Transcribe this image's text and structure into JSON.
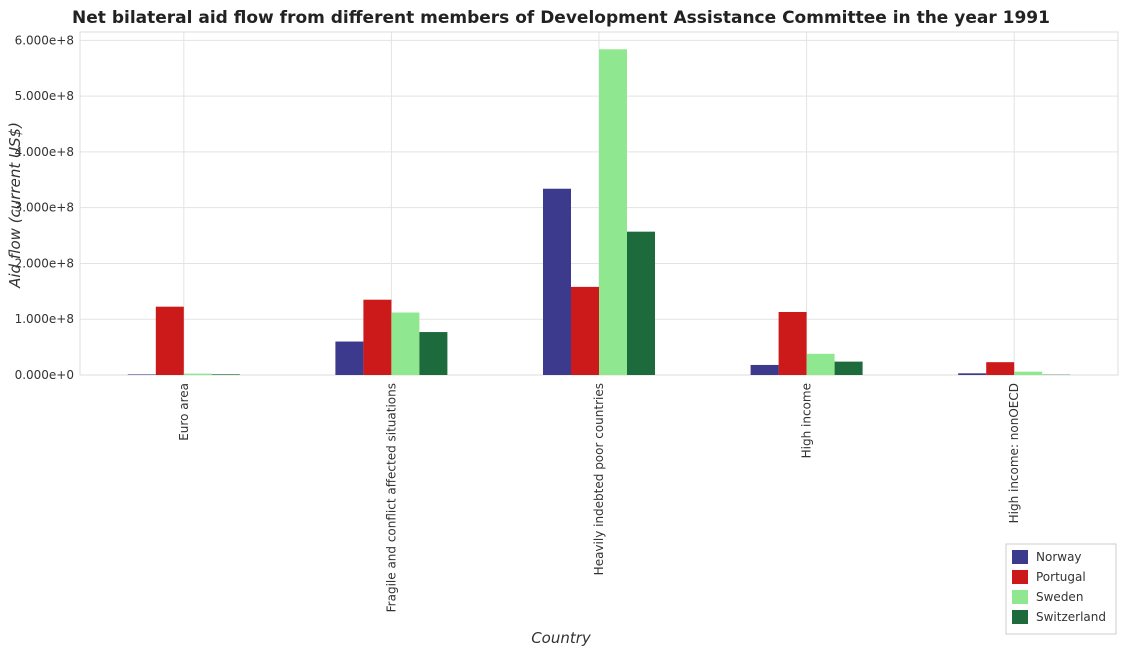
{
  "chart_data": {
    "type": "bar",
    "title": "Net bilateral aid flow from different members of Development Assistance Committee in the year 1991",
    "x_label": "Country",
    "y_label": "Aid flow (current US$)",
    "categories": [
      "Euro area",
      "Fragile and conflict affected situations",
      "Heavily indebted poor countries",
      "High income",
      "High income: nonOECD"
    ],
    "series": [
      {
        "name": "Norway",
        "color": "#3b3a8c",
        "values": [
          1000000,
          60000000,
          334000000,
          18000000,
          3000000
        ]
      },
      {
        "name": "Portugal",
        "color": "#cc1a1a",
        "values": [
          122500000,
          135000000,
          158000000,
          113000000,
          23000000
        ]
      },
      {
        "name": "Sweden",
        "color": "#8fe88f",
        "values": [
          2500000,
          112000000,
          584000000,
          38000000,
          6000000
        ]
      },
      {
        "name": "Switzerland",
        "color": "#1d6b3c",
        "values": [
          1200000,
          77000000,
          257000000,
          24000000,
          500000
        ]
      }
    ],
    "ylim": [
      0,
      615000000
    ],
    "yticks": [
      {
        "value": 0,
        "label": "0.000e+0"
      },
      {
        "value": 100000000,
        "label": "1.000e+8"
      },
      {
        "value": 200000000,
        "label": "2.000e+8"
      },
      {
        "value": 300000000,
        "label": "3.000e+8"
      },
      {
        "value": 400000000,
        "label": "4.000e+8"
      },
      {
        "value": 500000000,
        "label": "5.000e+8"
      },
      {
        "value": 600000000,
        "label": "6.000e+8"
      }
    ],
    "grid": true,
    "legend": "bottom-right"
  }
}
